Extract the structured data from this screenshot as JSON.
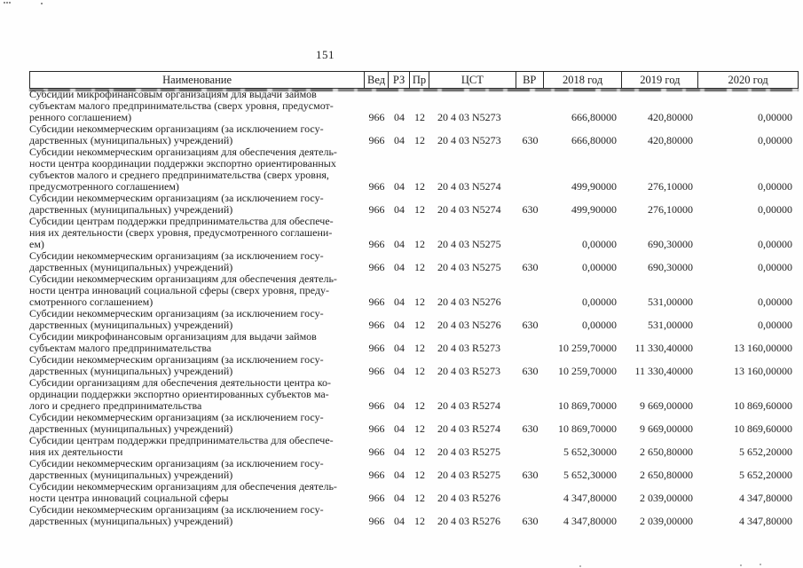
{
  "page": {
    "number": "151"
  },
  "table": {
    "columns": [
      "Наименование",
      "Вед",
      "РЗ",
      "Пр",
      "ЦСТ",
      "ВР",
      "2018 год",
      "2019 год",
      "2020 год"
    ],
    "rows": [
      {
        "name": "Субсидии микрофинансовым организациям для выдачи займов\nсубъектам малого предпринимательства (сверх уровня, предусмот-\nренного соглашением)",
        "ved": "966",
        "rz": "04",
        "pr": "12",
        "cst": "20 4 03 N5273",
        "vr": "",
        "y2018": "666,80000",
        "y2019": "420,80000",
        "y2020": "0,00000"
      },
      {
        "name": "Субсидии некоммерческим организациям (за исключением госу-\nдарственных (муниципальных) учреждений)",
        "ved": "966",
        "rz": "04",
        "pr": "12",
        "cst": "20 4 03 N5273",
        "vr": "630",
        "y2018": "666,80000",
        "y2019": "420,80000",
        "y2020": "0,00000"
      },
      {
        "name": "Субсидии некоммерческим организациям для обеспечения деятель-\nности центра координации поддержки экспортно ориентированных\nсубъектов малого и среднего предпринимательства (сверх уровня,\nпредусмотренного соглашением)",
        "ved": "966",
        "rz": "04",
        "pr": "12",
        "cst": "20 4 03 N5274",
        "vr": "",
        "y2018": "499,90000",
        "y2019": "276,10000",
        "y2020": "0,00000"
      },
      {
        "name": "Субсидии некоммерческим организациям (за исключением госу-\nдарственных (муниципальных) учреждений)",
        "ved": "966",
        "rz": "04",
        "pr": "12",
        "cst": "20 4 03 N5274",
        "vr": "630",
        "y2018": "499,90000",
        "y2019": "276,10000",
        "y2020": "0,00000"
      },
      {
        "name": "Субсидии центрам поддержки предпринимательства для обеспече-\nния их деятельности (сверх уровня, предусмотренного соглашени-\nем)",
        "ved": "966",
        "rz": "04",
        "pr": "12",
        "cst": "20 4 03 N5275",
        "vr": "",
        "y2018": "0,00000",
        "y2019": "690,30000",
        "y2020": "0,00000"
      },
      {
        "name": "Субсидии некоммерческим организациям (за исключением госу-\nдарственных (муниципальных) учреждений)",
        "ved": "966",
        "rz": "04",
        "pr": "12",
        "cst": "20 4 03 N5275",
        "vr": "630",
        "y2018": "0,00000",
        "y2019": "690,30000",
        "y2020": "0,00000"
      },
      {
        "name": "Субсидии некоммерческим организациям для обеспечения деятель-\nности центра инноваций социальной сферы (сверх уровня, преду-\nсмотренного соглашением)",
        "ved": "966",
        "rz": "04",
        "pr": "12",
        "cst": "20 4 03 N5276",
        "vr": "",
        "y2018": "0,00000",
        "y2019": "531,00000",
        "y2020": "0,00000"
      },
      {
        "name": "Субсидии некоммерческим организациям (за исключением госу-\nдарственных (муниципальных) учреждений)",
        "ved": "966",
        "rz": "04",
        "pr": "12",
        "cst": "20 4 03 N5276",
        "vr": "630",
        "y2018": "0,00000",
        "y2019": "531,00000",
        "y2020": "0,00000"
      },
      {
        "name": "Субсидии микрофинансовым организациям для выдачи займов\nсубъектам малого предпринимательства",
        "ved": "966",
        "rz": "04",
        "pr": "12",
        "cst": "20 4 03 R5273",
        "vr": "",
        "y2018": "10 259,70000",
        "y2019": "11 330,40000",
        "y2020": "13 160,00000"
      },
      {
        "name": "Субсидии некоммерческим организациям (за исключением госу-\nдарственных (муниципальных) учреждений)",
        "ved": "966",
        "rz": "04",
        "pr": "12",
        "cst": "20 4 03 R5273",
        "vr": "630",
        "y2018": "10 259,70000",
        "y2019": "11 330,40000",
        "y2020": "13 160,00000"
      },
      {
        "name": "Субсидии организациям для обеспечения деятельности центра ко-\nординации поддержки экспортно ориентированных субъектов ма-\nлого и среднего предпринимательства",
        "ved": "966",
        "rz": "04",
        "pr": "12",
        "cst": "20 4 03 R5274",
        "vr": "",
        "y2018": "10 869,70000",
        "y2019": "9 669,00000",
        "y2020": "10 869,60000"
      },
      {
        "name": "Субсидии некоммерческим организациям (за исключением госу-\nдарственных (муниципальных) учреждений)",
        "ved": "966",
        "rz": "04",
        "pr": "12",
        "cst": "20 4 03 R5274",
        "vr": "630",
        "y2018": "10 869,70000",
        "y2019": "9 669,00000",
        "y2020": "10 869,60000"
      },
      {
        "name": "Субсидии центрам поддержки предпринимательства для обеспече-\nния их деятельности",
        "ved": "966",
        "rz": "04",
        "pr": "12",
        "cst": "20 4 03 R5275",
        "vr": "",
        "y2018": "5 652,30000",
        "y2019": "2 650,80000",
        "y2020": "5 652,20000"
      },
      {
        "name": "Субсидии некоммерческим организациям (за исключением госу-\nдарственных (муниципальных) учреждений)",
        "ved": "966",
        "rz": "04",
        "pr": "12",
        "cst": "20 4 03 R5275",
        "vr": "630",
        "y2018": "5 652,30000",
        "y2019": "2 650,80000",
        "y2020": "5 652,20000"
      },
      {
        "name": "Субсидии некоммерческим организациям для обеспечения деятель-\nности центра инноваций социальной сферы",
        "ved": "966",
        "rz": "04",
        "pr": "12",
        "cst": "20 4 03 R5276",
        "vr": "",
        "y2018": "4 347,80000",
        "y2019": "2 039,00000",
        "y2020": "4 347,80000"
      },
      {
        "name": "Субсидии некоммерческим организациям (за исключением госу-\nдарственных (муниципальных) учреждений)",
        "ved": "966",
        "rz": "04",
        "pr": "12",
        "cst": "20 4 03 R5276",
        "vr": "630",
        "y2018": "4 347,80000",
        "y2019": "2 039,00000",
        "y2020": "4 347,80000"
      }
    ]
  }
}
